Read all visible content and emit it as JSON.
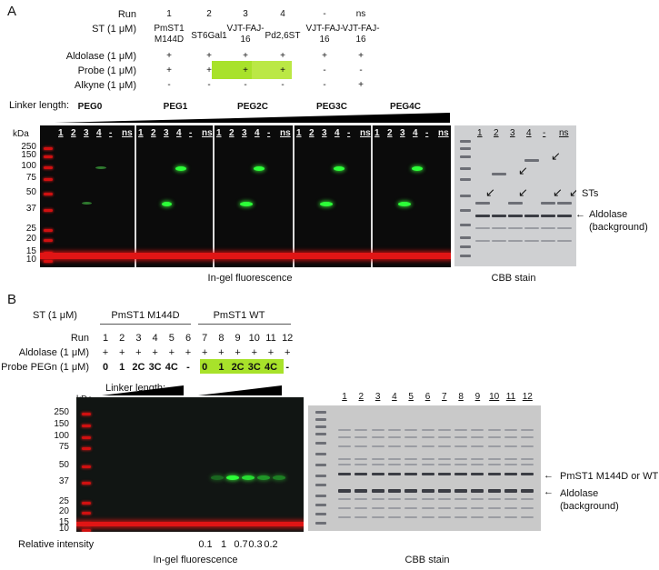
{
  "panelA": {
    "letter": "A",
    "rows": [
      {
        "label": "Run",
        "cells": [
          "1",
          "2",
          "3",
          "4",
          "-",
          "ns"
        ]
      },
      {
        "label": "ST (1 μM)",
        "cells": [
          "PmST1\nM144D",
          "ST6Gal1",
          "VJT-FAJ-\n16",
          "Pd2,6ST",
          "VJT-FAJ-\n16",
          "VJT-FAJ-\n16"
        ]
      },
      {
        "label": "Aldolase (1 μM)",
        "cells": [
          "+",
          "+",
          "+",
          "+",
          "+",
          "+"
        ]
      },
      {
        "label": "Probe (1 μM)",
        "cells": [
          "+",
          "+",
          "+",
          "+",
          "-",
          "-"
        ]
      },
      {
        "label": "Alkyne (1 μM)",
        "cells": [
          "-",
          "-",
          "-",
          "-",
          "-",
          "+"
        ]
      }
    ],
    "linker_label": "Linker length:",
    "peg_groups": [
      "PEG0",
      "PEG1",
      "PEG2C",
      "PEG3C",
      "PEG4C"
    ],
    "lane_labels": [
      "1",
      "2",
      "3",
      "4",
      "-",
      "ns"
    ],
    "kda": "kDa",
    "markers": [
      "250",
      "150",
      "100",
      "75",
      "50",
      "37",
      "25",
      "20",
      "15",
      "10"
    ],
    "gel_caption": "In-gel fluorescence",
    "cbb_caption": "CBB stain",
    "cbb_lanes": [
      "1",
      "2",
      "3",
      "4",
      "-",
      "ns"
    ],
    "sts_label": "STs",
    "aldolase_label": "Aldolase\n(background)",
    "highlight_color": "#a8e22a"
  },
  "panelB": {
    "letter": "B",
    "st_label": "ST (1 μM)",
    "st_groups": [
      "PmST1 M144D",
      "PmST1 WT"
    ],
    "run_label": "Run",
    "runs": [
      "1",
      "2",
      "3",
      "4",
      "5",
      "6",
      "7",
      "8",
      "9",
      "10",
      "11",
      "12"
    ],
    "aldolase_label": "Aldolase (1 μM)",
    "aldolase": [
      "+",
      "+",
      "+",
      "+",
      "+",
      "+",
      "+",
      "+",
      "+",
      "+",
      "+",
      "+"
    ],
    "probe_label": "Probe PEGn (1 μM)",
    "probe": [
      "0",
      "1",
      "2C",
      "3C",
      "4C",
      "-",
      "0",
      "1",
      "2C",
      "3C",
      "4C",
      "-"
    ],
    "linker_label": "Linker length:",
    "kda": "kDa",
    "markers": [
      "250",
      "150",
      "100",
      "75",
      "50",
      "37",
      "25",
      "20",
      "15",
      "10"
    ],
    "rel_label": "Relative intensity",
    "rel_values": [
      "0.1",
      "1",
      "0.7",
      "0.3",
      "0.2"
    ],
    "gel_caption": "In-gel fluorescence",
    "cbb_caption": "CBB stain",
    "cbb_lanes": [
      "1",
      "2",
      "3",
      "4",
      "5",
      "6",
      "7",
      "8",
      "9",
      "10",
      "11",
      "12"
    ],
    "st_band_label": "PmST1 M144D or WT",
    "aldolase_band_label": "Aldolase\n(background)"
  }
}
